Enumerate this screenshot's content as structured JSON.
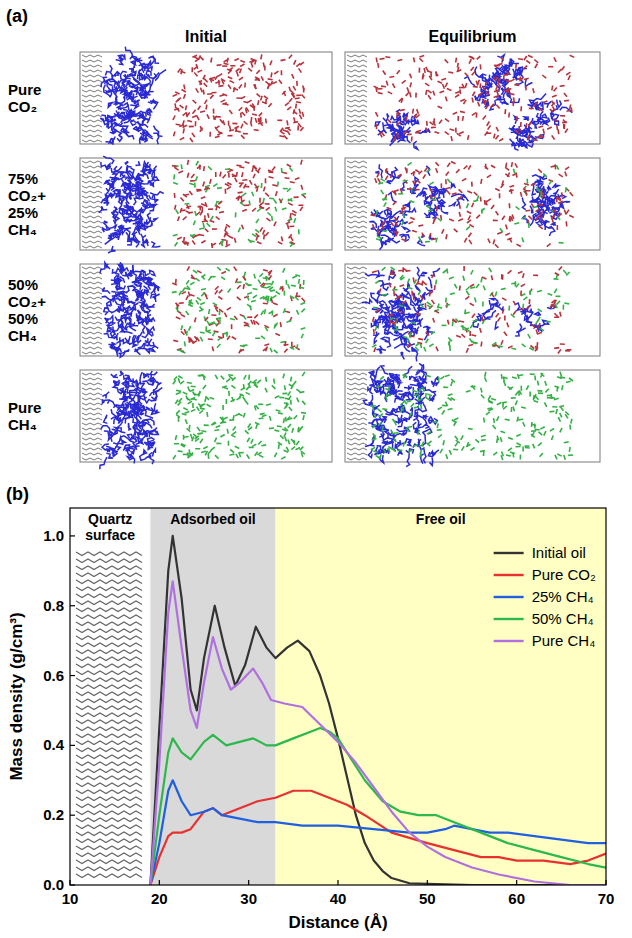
{
  "panel_a": {
    "letter": "(a)",
    "columns": [
      "Initial",
      "Equilibrium"
    ],
    "rows": [
      {
        "label": "Pure CO₂",
        "co2_percent": 100,
        "ch4_percent": 0
      },
      {
        "label": "75% CO₂+ 25% CH₄",
        "co2_percent": 75,
        "ch4_percent": 25
      },
      {
        "label": "50% CO₂+ 50% CH₄",
        "co2_percent": 50,
        "ch4_percent": 50
      },
      {
        "label": "Pure CH₄",
        "co2_percent": 0,
        "ch4_percent": 100
      }
    ]
  },
  "panel_b": {
    "letter": "(b)"
  },
  "chart_data": {
    "type": "line",
    "xlabel": "Distance (Å)",
    "ylabel": "Mass density (g/cm³)",
    "xlim": [
      10,
      70
    ],
    "xticks": [
      10,
      20,
      30,
      40,
      50,
      60,
      70
    ],
    "ylim": [
      0,
      1.08
    ],
    "yticks": [
      {
        "value": 0,
        "label": "0.0"
      },
      {
        "value": 0.2,
        "label": "0.2"
      },
      {
        "value": 0.4,
        "label": "0.4"
      },
      {
        "value": 0.6,
        "label": "0.6"
      },
      {
        "value": 0.8,
        "label": "0.8"
      },
      {
        "value": 1.0,
        "label": "1.0"
      }
    ],
    "grid": false,
    "legend": "upper right",
    "regions": [
      {
        "label": "Quartz surface",
        "from": 10,
        "to": 19,
        "color": "#ffffff"
      },
      {
        "label": "Adsorbed oil",
        "from": 19,
        "to": 33,
        "color": "#d9d9d9"
      },
      {
        "label": "Free oil",
        "from": 33,
        "to": 70,
        "color": "#ffffc4"
      }
    ],
    "series": [
      {
        "name": "Initial oil",
        "color": "#333333",
        "x": [
          19,
          20,
          21,
          21.5,
          22.5,
          23.5,
          24.2,
          25,
          26.2,
          27.3,
          28.5,
          29.6,
          30.8,
          32,
          33,
          34.3,
          35.5,
          36.8,
          38,
          39,
          40,
          41,
          42,
          43,
          44,
          45,
          46,
          48,
          55,
          62,
          70
        ],
        "values": [
          0,
          0.45,
          0.9,
          1.0,
          0.82,
          0.56,
          0.5,
          0.65,
          0.8,
          0.68,
          0.57,
          0.63,
          0.74,
          0.68,
          0.65,
          0.68,
          0.7,
          0.67,
          0.6,
          0.52,
          0.42,
          0.31,
          0.2,
          0.12,
          0.07,
          0.04,
          0.02,
          0.005,
          0,
          0,
          0
        ]
      },
      {
        "name": "Pure CO₂",
        "color": "#e8312f",
        "x": [
          19,
          20,
          21,
          21.5,
          22.5,
          23.5,
          25,
          26,
          27,
          28,
          29,
          31,
          33,
          35,
          37,
          39,
          41,
          43,
          46,
          50,
          53,
          56,
          58,
          60,
          63,
          66,
          68,
          70
        ],
        "values": [
          0,
          0.08,
          0.14,
          0.15,
          0.15,
          0.16,
          0.21,
          0.22,
          0.2,
          0.21,
          0.22,
          0.24,
          0.25,
          0.27,
          0.27,
          0.25,
          0.23,
          0.2,
          0.15,
          0.12,
          0.1,
          0.08,
          0.08,
          0.07,
          0.07,
          0.06,
          0.07,
          0.09
        ]
      },
      {
        "name": "25% CH₄",
        "color": "#1f5fe0",
        "x": [
          19,
          20,
          21,
          21.5,
          22.5,
          23.5,
          25,
          26,
          27,
          29,
          31,
          33,
          36,
          40,
          44,
          48,
          50,
          52,
          53,
          55,
          57,
          59,
          62,
          65,
          68,
          70
        ],
        "values": [
          0,
          0.12,
          0.27,
          0.3,
          0.24,
          0.2,
          0.21,
          0.22,
          0.2,
          0.19,
          0.18,
          0.18,
          0.17,
          0.17,
          0.16,
          0.15,
          0.15,
          0.16,
          0.17,
          0.16,
          0.15,
          0.15,
          0.14,
          0.13,
          0.12,
          0.12
        ]
      },
      {
        "name": "50% CH₄",
        "color": "#2db84d",
        "x": [
          19,
          20,
          21,
          21.5,
          22.5,
          23.5,
          25,
          26,
          27.5,
          29,
          30.5,
          32,
          33,
          35,
          37,
          38,
          39,
          40,
          41,
          43,
          45,
          47,
          49,
          51,
          53,
          56,
          59,
          62,
          65,
          68,
          70
        ],
        "values": [
          0,
          0.2,
          0.38,
          0.42,
          0.38,
          0.36,
          0.41,
          0.43,
          0.4,
          0.41,
          0.42,
          0.4,
          0.4,
          0.42,
          0.44,
          0.45,
          0.44,
          0.42,
          0.38,
          0.3,
          0.24,
          0.21,
          0.2,
          0.2,
          0.18,
          0.15,
          0.12,
          0.1,
          0.08,
          0.06,
          0.05
        ]
      },
      {
        "name": "Pure CH₄",
        "color": "#b070e0",
        "x": [
          19,
          20,
          21,
          21.5,
          22.5,
          23.5,
          24.2,
          25,
          26,
          27,
          28,
          29,
          30.5,
          31.5,
          32.5,
          34,
          36,
          38,
          40,
          42,
          44,
          46,
          48,
          50,
          52,
          55,
          58,
          62,
          66,
          70
        ],
        "values": [
          0,
          0.35,
          0.78,
          0.87,
          0.68,
          0.5,
          0.45,
          0.58,
          0.71,
          0.62,
          0.56,
          0.58,
          0.62,
          0.58,
          0.53,
          0.52,
          0.51,
          0.46,
          0.41,
          0.35,
          0.28,
          0.21,
          0.15,
          0.11,
          0.08,
          0.05,
          0.03,
          0.01,
          0,
          0
        ]
      }
    ]
  }
}
